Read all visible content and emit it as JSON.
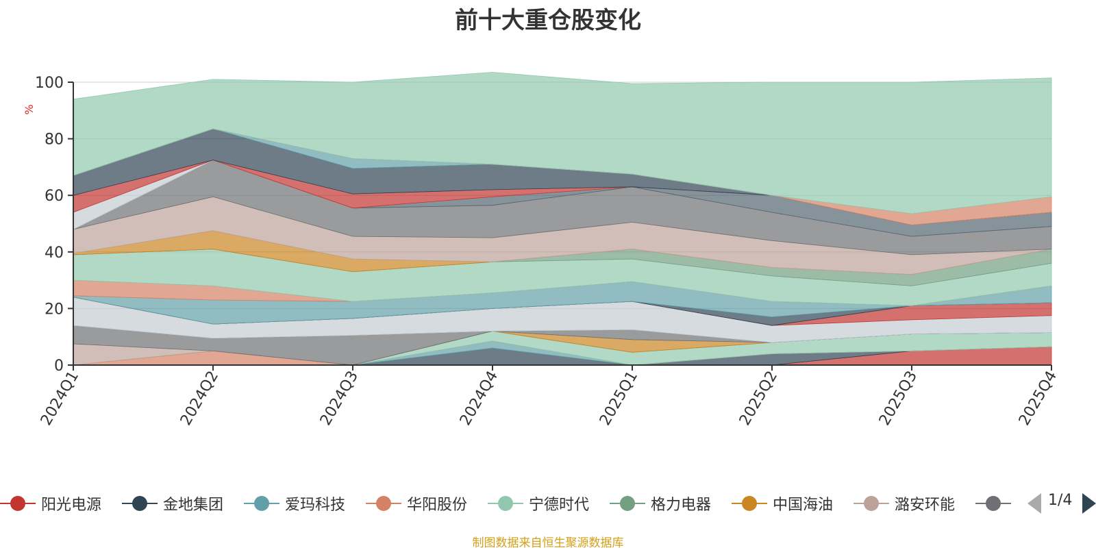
{
  "title": "前十大重仓股变化",
  "source_note": "制图数据来自恒生聚源数据库",
  "pager": {
    "text": "1/4"
  },
  "chart_data": {
    "type": "area",
    "title": "前十大重仓股变化",
    "xlabel": "",
    "ylabel": "%",
    "ylim": [
      0,
      100
    ],
    "yticks": [
      0,
      20,
      40,
      60,
      80,
      100
    ],
    "grid": true,
    "stacked": true,
    "legend_position": "bottom",
    "categories": [
      "2024Q1",
      "2024Q2",
      "2024Q3",
      "2024Q4",
      "2025Q1",
      "2025Q2",
      "2025Q3",
      "2025Q4"
    ],
    "series": [
      {
        "name": "阳光电源",
        "color": "#c23531",
        "values": [
          0,
          0,
          0,
          0,
          0,
          0,
          5,
          6.5
        ]
      },
      {
        "name": "金地集团",
        "color": "#2f4554",
        "values": [
          0,
          0,
          0,
          6,
          0,
          4,
          0,
          0
        ]
      },
      {
        "name": "爱玛科技",
        "color": "#61a0a8",
        "values": [
          0,
          0,
          0,
          2.5,
          0,
          0,
          0,
          0
        ]
      },
      {
        "name": "华阳股份",
        "color": "#d48265",
        "values": [
          0,
          5,
          0,
          0,
          0,
          0,
          0,
          0
        ]
      },
      {
        "name": "宁德时代",
        "color": "#91c7ae",
        "values": [
          0,
          0,
          0,
          3.5,
          4.5,
          4,
          6,
          5
        ]
      },
      {
        "name": "格力电器",
        "color": "#749f83",
        "values": [
          0,
          0,
          0,
          0,
          0,
          0,
          0,
          0
        ]
      },
      {
        "name": "中国海油",
        "color": "#ca8622",
        "values": [
          0,
          0,
          0,
          0,
          4.5,
          0,
          0,
          0
        ]
      },
      {
        "name": "潞安环能",
        "color": "#bda29a",
        "values": [
          7.5,
          0,
          0,
          0,
          0,
          0,
          0,
          0
        ]
      },
      {
        "name": "",
        "color": "#6e7074",
        "values": [
          6.5,
          4.5,
          10.5,
          0,
          3.5,
          0,
          0,
          0
        ]
      },
      {
        "name": "",
        "color": "#546570",
        "values": [
          0,
          0,
          0,
          0,
          0,
          0,
          0,
          0
        ]
      },
      {
        "name": "",
        "color": "#c4ccd3",
        "values": [
          10,
          5,
          6,
          8,
          10,
          6,
          5,
          6
        ]
      },
      {
        "name": "",
        "color": "#c23531",
        "values": [
          0,
          0,
          0,
          0,
          0,
          0,
          5,
          4.5
        ]
      },
      {
        "name": "",
        "color": "#2f4554",
        "values": [
          0,
          0,
          0,
          0,
          0,
          3,
          0,
          0
        ]
      },
      {
        "name": "",
        "color": "#61a0a8",
        "values": [
          0.5,
          8.5,
          6,
          5.5,
          7,
          5.5,
          0,
          6
        ]
      },
      {
        "name": "",
        "color": "#d48265",
        "values": [
          5.5,
          5,
          0,
          0,
          0,
          0,
          0,
          0
        ]
      },
      {
        "name": "",
        "color": "#91c7ae",
        "values": [
          9,
          13,
          10.5,
          11,
          8,
          9,
          7,
          8
        ]
      },
      {
        "name": "",
        "color": "#749f83",
        "values": [
          0,
          0,
          0,
          0,
          3.5,
          3,
          4,
          5
        ]
      },
      {
        "name": "",
        "color": "#ca8622",
        "values": [
          0.5,
          6.5,
          4.5,
          0,
          0,
          0,
          0,
          0
        ]
      },
      {
        "name": "",
        "color": "#bda29a",
        "values": [
          8.5,
          12,
          8,
          8.5,
          9.5,
          9.5,
          7,
          0
        ]
      },
      {
        "name": "",
        "color": "#6e7074",
        "values": [
          0,
          13,
          10,
          11.5,
          12.5,
          10,
          6.5,
          8
        ]
      },
      {
        "name": "",
        "color": "#546570",
        "values": [
          0,
          0,
          0,
          3,
          0,
          6,
          4,
          5
        ]
      },
      {
        "name": "",
        "color": "#c4ccd3",
        "values": [
          6,
          0,
          0,
          0,
          0,
          0,
          0,
          0
        ]
      },
      {
        "name": "",
        "color": "#c23531",
        "values": [
          6,
          0,
          5,
          2.5,
          0,
          0,
          0,
          0
        ]
      },
      {
        "name": "",
        "color": "#2f4554",
        "values": [
          7,
          11,
          9,
          9,
          4.5,
          0,
          0,
          0
        ]
      },
      {
        "name": "",
        "color": "#61a0a8",
        "values": [
          0,
          0,
          3.5,
          0,
          0,
          0,
          0,
          0
        ]
      },
      {
        "name": "",
        "color": "#d48265",
        "values": [
          0,
          0,
          0,
          0,
          0,
          0,
          4,
          5.5
        ]
      },
      {
        "name": "",
        "color": "#91c7ae",
        "values": [
          27,
          17.5,
          27,
          32.5,
          32,
          40,
          46.5,
          42
        ]
      }
    ]
  },
  "legend": {
    "items": [
      {
        "label": "阳光电源",
        "color": "#c23531"
      },
      {
        "label": "金地集团",
        "color": "#2f4554"
      },
      {
        "label": "爱玛科技",
        "color": "#61a0a8"
      },
      {
        "label": "华阳股份",
        "color": "#d48265"
      },
      {
        "label": "宁德时代",
        "color": "#91c7ae"
      },
      {
        "label": "格力电器",
        "color": "#749f83"
      },
      {
        "label": "中国海油",
        "color": "#ca8622"
      },
      {
        "label": "潞安环能",
        "color": "#bda29a"
      },
      {
        "label": "",
        "color": "#6e7074"
      }
    ]
  }
}
